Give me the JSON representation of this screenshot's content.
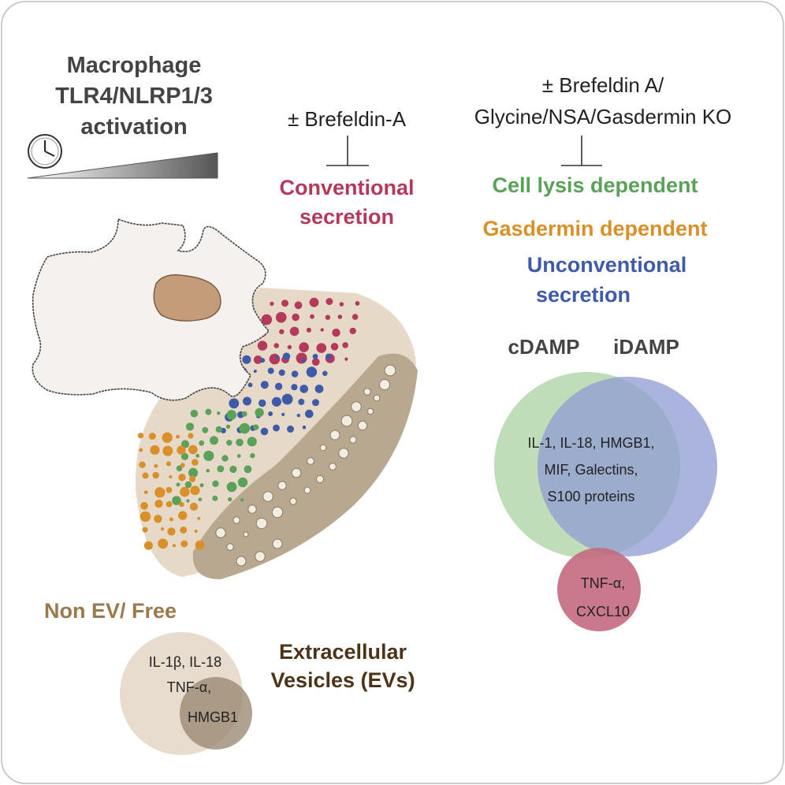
{
  "header": {
    "title_lines": [
      "Macrophage",
      "TLR4/NLRP1/3",
      "activation"
    ]
  },
  "treatments": {
    "left": "± Brefeldin-A",
    "right_line1": "± Brefeldin A/",
    "right_line2": "Glycine/NSA/Gasdermin KO"
  },
  "categories": {
    "conventional_line1": "Conventional",
    "conventional_line2": "secretion",
    "cell_lysis": "Cell lysis dependent",
    "gasdermin": "Gasdermin dependent",
    "unconventional_line1": "Unconventional",
    "unconventional_line2": "secretion"
  },
  "venn_damp": {
    "left_label": "cDAMP",
    "right_label": "iDAMP",
    "overlap_lines": [
      "IL-1, IL-18, HMGB1,",
      "MIF, Galectins,",
      "S100 proteins"
    ],
    "bottom_lines": [
      "TNF-α,",
      "CXCL10"
    ]
  },
  "venn_ev": {
    "nonev_label": "Non EV/ Free",
    "ev_label_line1": "Extracellular",
    "ev_label_line2": "Vesicles (EVs)",
    "line1": "IL-1β, IL-18",
    "line2": "TNF-α,",
    "line3": "HMGB1"
  },
  "colors": {
    "conventional": "#b5395a",
    "cell_lysis": "#5aa25a",
    "gasdermin": "#d9902a",
    "unconventional": "#3f5aa8",
    "venn_cdamp": "#a8d1a0",
    "venn_idamp": "#8f9bd3",
    "venn_overlap": "#5f7fa6",
    "tnf_circle": "#c46a80",
    "nonev_circle": "#e7dccd",
    "ev_circle": "#9c8b74",
    "frame": "#bbbbbb"
  },
  "icons": [
    "clock-icon",
    "gradient-wedge",
    "inhibition-symbol"
  ]
}
